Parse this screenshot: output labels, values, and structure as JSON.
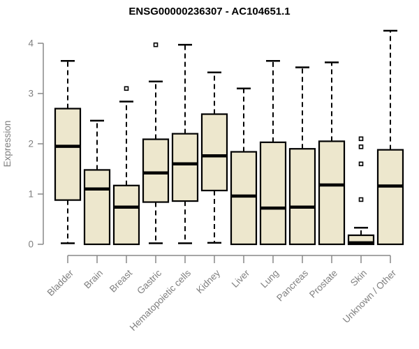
{
  "chart_data": {
    "type": "boxplot",
    "title": "ENSG00000236307 - AC104651.1",
    "ylabel": "Expression",
    "xlabel": "",
    "ylim": [
      0,
      4.3
    ],
    "yticks": [
      0,
      1,
      2,
      3,
      4
    ],
    "grid": false,
    "legend": "none",
    "categories": [
      "Bladder",
      "Brain",
      "Breast",
      "Gastric",
      "Hematopoietic cells",
      "Kidney",
      "Liver",
      "Lung",
      "Pancreas",
      "Prostate",
      "Skin",
      "Unknown / Other"
    ],
    "boxes": [
      {
        "category": "Bladder",
        "low": 0.02,
        "q1": 0.88,
        "median": 1.95,
        "q3": 2.7,
        "high": 3.65,
        "outliers": []
      },
      {
        "category": "Brain",
        "low": 0.0,
        "q1": 0.0,
        "median": 1.1,
        "q3": 1.48,
        "high": 2.46,
        "outliers": []
      },
      {
        "category": "Breast",
        "low": 0.0,
        "q1": 0.0,
        "median": 0.74,
        "q3": 1.17,
        "high": 2.84,
        "outliers": [
          3.1
        ]
      },
      {
        "category": "Gastric",
        "low": 0.02,
        "q1": 0.84,
        "median": 1.42,
        "q3": 2.09,
        "high": 3.24,
        "outliers": [
          3.97
        ]
      },
      {
        "category": "Hematopoietic cells",
        "low": 0.02,
        "q1": 0.86,
        "median": 1.6,
        "q3": 2.2,
        "high": 3.97,
        "outliers": []
      },
      {
        "category": "Kidney",
        "low": 0.03,
        "q1": 1.07,
        "median": 1.76,
        "q3": 2.59,
        "high": 3.42,
        "outliers": []
      },
      {
        "category": "Liver",
        "low": 0.0,
        "q1": 0.0,
        "median": 0.96,
        "q3": 1.84,
        "high": 3.1,
        "outliers": []
      },
      {
        "category": "Lung",
        "low": 0.0,
        "q1": 0.0,
        "median": 0.72,
        "q3": 2.03,
        "high": 3.65,
        "outliers": []
      },
      {
        "category": "Pancreas",
        "low": 0.0,
        "q1": 0.0,
        "median": 0.74,
        "q3": 1.9,
        "high": 3.52,
        "outliers": []
      },
      {
        "category": "Prostate",
        "low": 0.0,
        "q1": 0.0,
        "median": 1.18,
        "q3": 2.05,
        "high": 3.62,
        "outliers": []
      },
      {
        "category": "Skin",
        "low": 0.0,
        "q1": 0.0,
        "median": 0.03,
        "q3": 0.18,
        "high": 0.33,
        "outliers": [
          0.89,
          1.6,
          1.94,
          2.1
        ]
      },
      {
        "category": "Unknown / Other",
        "low": 0.0,
        "q1": 0.0,
        "median": 1.16,
        "q3": 1.88,
        "high": 4.25,
        "outliers": []
      }
    ]
  },
  "colors": {
    "box_fill": "#ede7cd",
    "box_border": "#000000",
    "median": "#000000",
    "whisker": "#000000",
    "outlier": "#000000",
    "axis": "#888888",
    "tick_label": "#7f7f7f",
    "title": "#000000",
    "background": "#ffffff"
  }
}
